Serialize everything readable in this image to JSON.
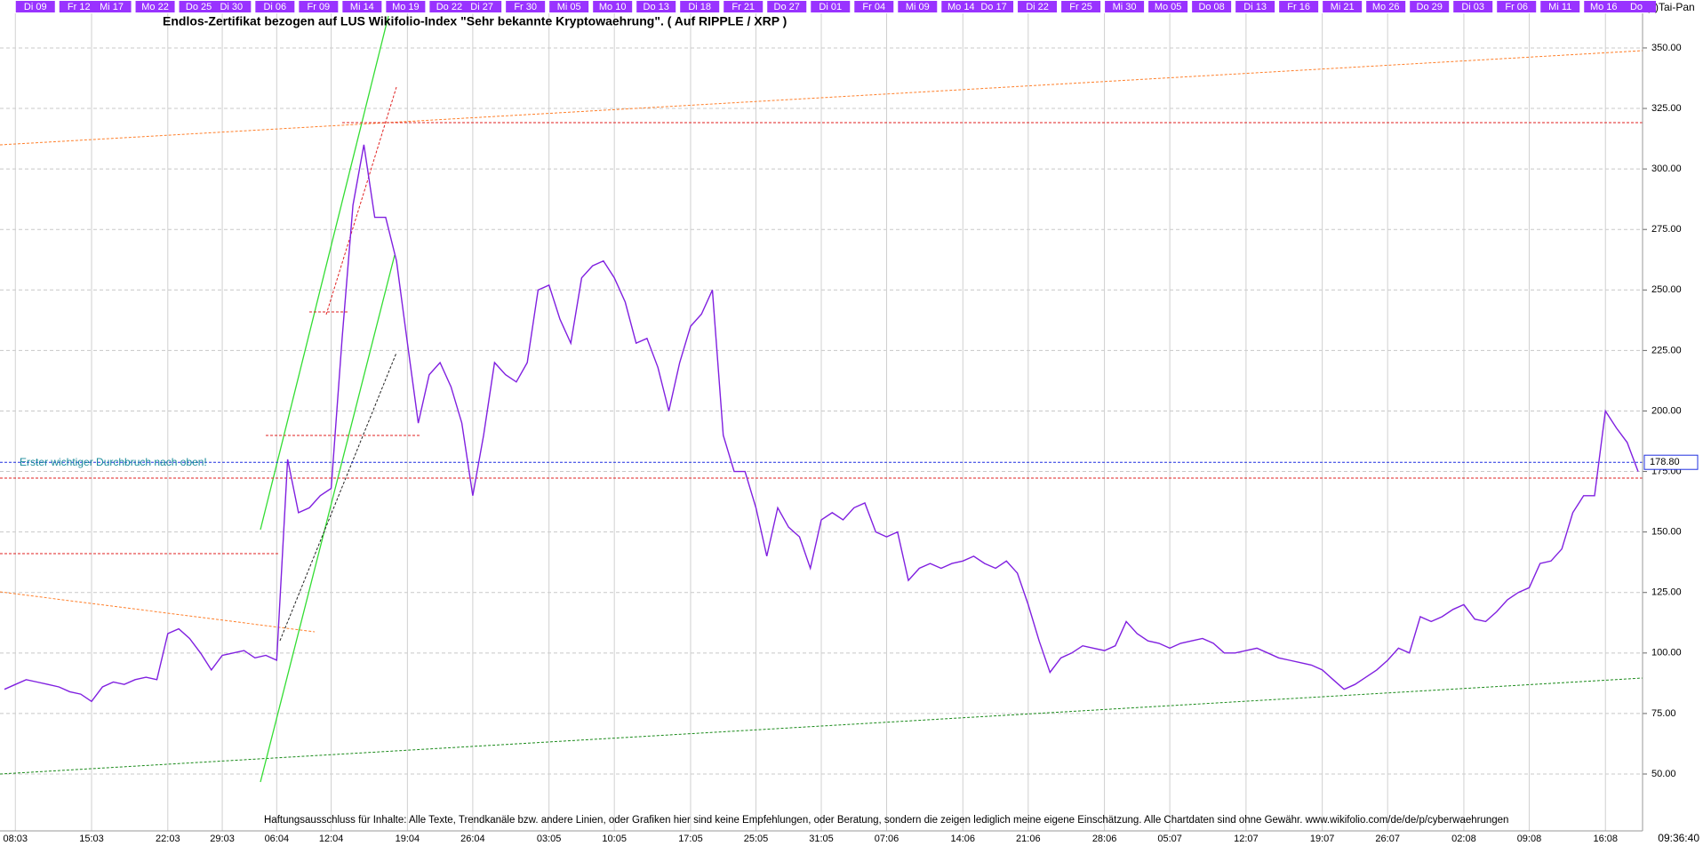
{
  "chart_data": {
    "type": "line",
    "title": "Endlos-Zertifikat bezogen auf LUS Wikifolio-Index \"Sehr bekannte Kryptowaehrung\". ( Auf RIPPLE / XRP )",
    "copyright": "(c)Tai-Pan",
    "annotation": "Erster wichtiger Durchbruch nach oben!",
    "disclaimer": "Haftungsausschluss für Inhalte: Alle Texte, Trendkanäle bzw. andere Linien, oder Grafiken hier sind keine Empfehlungen, oder Beratung, sondern die zeigen lediglich meine eigene Einschätzung. Alle Chartdaten sind ohne Gewähr.  www.wikifolio.com/de/de/p/cyberwaehrungen",
    "timestamp": "09:36:40",
    "color": "#8020e0",
    "categories": [
      null,
      "08:03",
      null,
      null,
      null,
      null,
      null,
      null,
      "15:03",
      null,
      null,
      null,
      null,
      null,
      null,
      "22:03",
      null,
      null,
      null,
      null,
      "29:03",
      null,
      null,
      null,
      null,
      "06:04",
      null,
      null,
      null,
      null,
      "12:04",
      null,
      null,
      null,
      null,
      null,
      null,
      "19:04",
      null,
      null,
      null,
      null,
      null,
      "26:04",
      null,
      null,
      null,
      null,
      null,
      null,
      "03:05",
      null,
      null,
      null,
      null,
      null,
      "10:05",
      null,
      null,
      null,
      null,
      null,
      null,
      "17:05",
      null,
      null,
      null,
      null,
      null,
      "25:05",
      null,
      null,
      null,
      null,
      null,
      "31:05",
      null,
      null,
      null,
      null,
      null,
      "07:06",
      null,
      null,
      null,
      null,
      null,
      null,
      "14:06",
      null,
      null,
      null,
      null,
      null,
      "21:06",
      null,
      null,
      null,
      null,
      null,
      null,
      "28:06",
      null,
      null,
      null,
      null,
      null,
      "05:07",
      null,
      null,
      null,
      null,
      null,
      null,
      "12:07",
      null,
      null,
      null,
      null,
      null,
      null,
      "19:07",
      null,
      null,
      null,
      null,
      null,
      "26:07",
      null,
      null,
      null,
      null,
      null,
      null,
      "02:08",
      null,
      null,
      null,
      null,
      null,
      "09:08",
      null,
      null,
      null,
      null,
      null,
      null,
      "16:08",
      null,
      null,
      null
    ],
    "top_categories": [
      null,
      null,
      null,
      "Di 09",
      null,
      null,
      null,
      "Fr 12",
      null,
      null,
      "Mi 17",
      null,
      null,
      null,
      "Mo 22",
      null,
      null,
      null,
      "Do 25",
      null,
      null,
      "Di 30",
      null,
      null,
      null,
      "Di 06",
      null,
      null,
      null,
      "Fr 09",
      null,
      null,
      null,
      "Mi 14",
      null,
      null,
      null,
      "Mo 19",
      null,
      null,
      null,
      "Do 22",
      null,
      null,
      "Di 27",
      null,
      null,
      null,
      "Fr 30",
      null,
      null,
      null,
      "Mi 05",
      null,
      null,
      null,
      "Mo 10",
      null,
      null,
      null,
      "Do 13",
      null,
      null,
      null,
      "Di 18",
      null,
      null,
      null,
      "Fr 21",
      null,
      null,
      null,
      "Do 27",
      null,
      null,
      null,
      "Di 01",
      null,
      null,
      null,
      "Fr 04",
      null,
      null,
      null,
      "Mi 09",
      null,
      null,
      null,
      "Mo 14",
      null,
      null,
      "Do 17",
      null,
      null,
      null,
      "Di 22",
      null,
      null,
      null,
      "Fr 25",
      null,
      null,
      null,
      "Mi 30",
      null,
      null,
      null,
      "Mo 05",
      null,
      null,
      null,
      "Do 08",
      null,
      null,
      null,
      "Di 13",
      null,
      null,
      null,
      "Fr 16",
      null,
      null,
      null,
      "Mi 21",
      null,
      null,
      null,
      "Mo 26",
      null,
      null,
      null,
      "Do 29",
      null,
      null,
      null,
      "Di 03",
      null,
      null,
      null,
      "Fr 06",
      null,
      null,
      null,
      "Mi 11",
      null,
      null,
      null,
      "Mo 16",
      null,
      null,
      "Do"
    ],
    "values": [
      85,
      87,
      89,
      88,
      87,
      86,
      84,
      83,
      80,
      86,
      88,
      87,
      89,
      90,
      89,
      108,
      110,
      106,
      100,
      93,
      99,
      100,
      101,
      98,
      99,
      97,
      180,
      158,
      160,
      165,
      168,
      230,
      285,
      310,
      280,
      280,
      262,
      228,
      195,
      215,
      220,
      210,
      195,
      165,
      190,
      220,
      215,
      212,
      220,
      250,
      252,
      238,
      228,
      255,
      260,
      262,
      255,
      245,
      228,
      230,
      218,
      200,
      220,
      235,
      240,
      250,
      190,
      175,
      175,
      160,
      140,
      160,
      152,
      148,
      135,
      155,
      158,
      155,
      160,
      162,
      150,
      148,
      150,
      130,
      135,
      137,
      135,
      137,
      138,
      140,
      137,
      135,
      138,
      133,
      120,
      105,
      92,
      98,
      100,
      103,
      102,
      101,
      103,
      113,
      108,
      105,
      104,
      102,
      104,
      105,
      106,
      104,
      100,
      100,
      101,
      102,
      100,
      98,
      97,
      96,
      95,
      93,
      89,
      85,
      87,
      90,
      93,
      97,
      102,
      100,
      115,
      113,
      115,
      118,
      120,
      114,
      113,
      117,
      122,
      125,
      127,
      137,
      138,
      143,
      158,
      165,
      165,
      200,
      193,
      187,
      175
    ],
    "price_marker": {
      "value": 178.8,
      "label": "178.80"
    },
    "ylim": [
      26.5,
      364.3
    ],
    "yticks": [
      {
        "value": 50,
        "label": "50.00"
      },
      {
        "value": 75,
        "label": "75.00"
      },
      {
        "value": 100,
        "label": "100.00"
      },
      {
        "value": 125,
        "label": "125.00"
      },
      {
        "value": 150,
        "label": "150.00"
      },
      {
        "value": 175,
        "label": "175.00"
      },
      {
        "value": 200,
        "label": "200.00"
      },
      {
        "value": 225,
        "label": "225.00"
      },
      {
        "value": 250,
        "label": "250.00"
      },
      {
        "value": 275,
        "label": "275.00"
      },
      {
        "value": 300,
        "label": "300.00"
      },
      {
        "value": 325,
        "label": "325.00"
      },
      {
        "value": 350,
        "label": "350.00"
      }
    ],
    "grid": true
  }
}
